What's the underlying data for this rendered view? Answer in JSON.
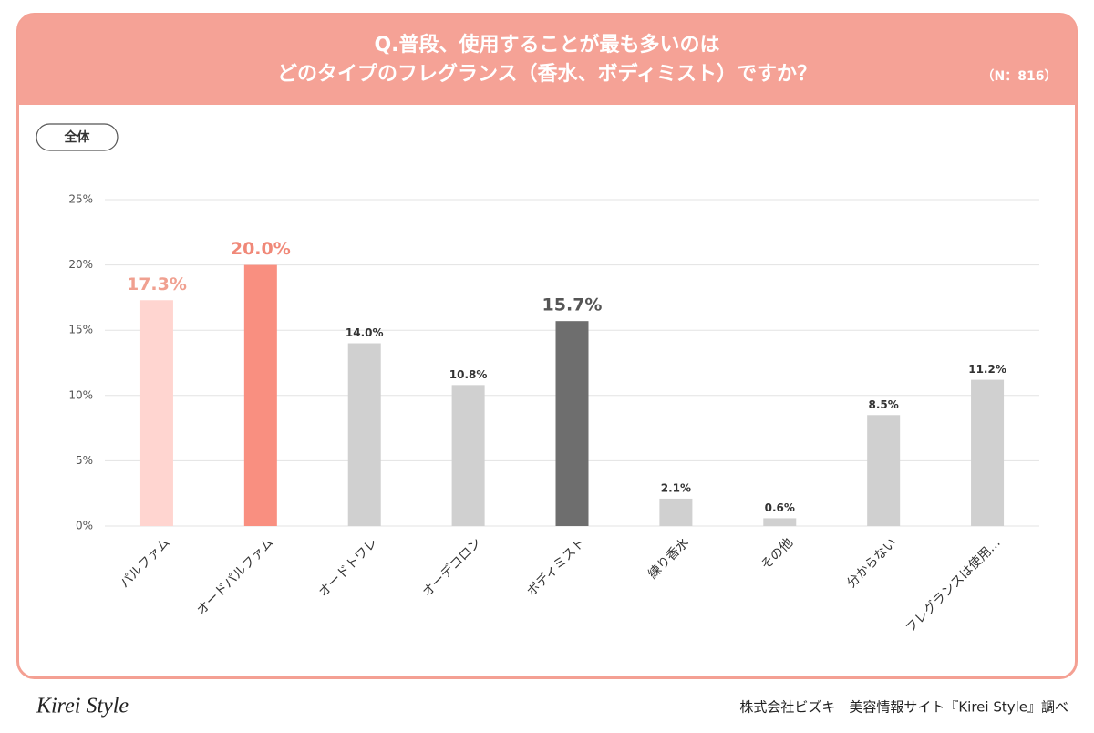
{
  "header": {
    "title_lines": [
      "Q.普段、使用することが最も多いのは",
      "どのタイプのフレグランス（香水、ボディミスト）ですか？"
    ],
    "sample": "（N：816）"
  },
  "tab": "全体",
  "chart_data": {
    "type": "bar",
    "categories": [
      "パルファム",
      "オードパルファム",
      "オードトワレ",
      "オーデコロン",
      "ボディミスト",
      "練り香水",
      "その他",
      "分からない",
      "フレグランスは使用…"
    ],
    "values": [
      17.3,
      20.0,
      14.0,
      10.8,
      15.7,
      2.1,
      0.6,
      8.5,
      11.2
    ],
    "value_labels": [
      "17.3%",
      "20.0%",
      "14.0%",
      "10.8%",
      "15.7%",
      "2.1%",
      "0.6%",
      "8.5%",
      "11.2%"
    ],
    "colors": [
      "#ffd5d0",
      "#f98f80",
      "#d0d0d0",
      "#d0d0d0",
      "#6e6e6e",
      "#d0d0d0",
      "#d0d0d0",
      "#d0d0d0",
      "#d0d0d0"
    ],
    "value_label_colors": [
      "#f0a090",
      "#f08878",
      "#333333",
      "#333333",
      "#555555",
      "#333333",
      "#333333",
      "#333333",
      "#333333"
    ],
    "emphasized": [
      true,
      true,
      false,
      false,
      true,
      false,
      false,
      false,
      false
    ],
    "ylim": [
      0,
      25
    ],
    "yticks": [
      {
        "value": 0,
        "label": "0%"
      },
      {
        "value": 5,
        "label": "5%"
      },
      {
        "value": 10,
        "label": "10%"
      },
      {
        "value": 15,
        "label": "15%"
      },
      {
        "value": 20,
        "label": "20%"
      },
      {
        "value": 25,
        "label": "25%"
      }
    ],
    "grid": true
  },
  "footer": {
    "logo": "Kirei Style",
    "credit": "株式会社ビズキ　美容情報サイト『Kirei Style』調べ"
  }
}
